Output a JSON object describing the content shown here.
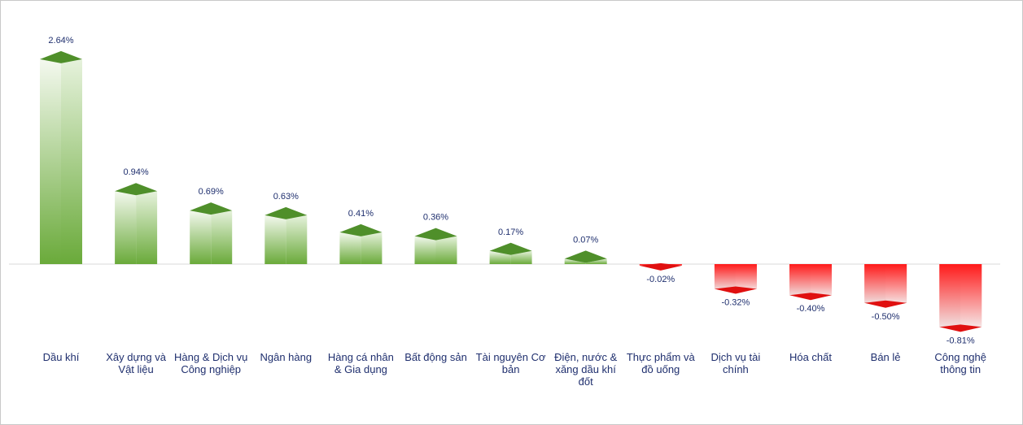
{
  "chart_data": {
    "type": "bar",
    "title": "",
    "xlabel": "",
    "ylabel": "",
    "grid": false,
    "legend": "none",
    "categories": [
      "Dầu khí",
      "Xây dựng và Vật liệu",
      "Hàng & Dịch vụ Công nghiệp",
      "Ngân hàng",
      "Hàng cá nhân & Gia dụng",
      "Bất động sản",
      "Tài nguyên Cơ bản",
      "Điện, nước & xăng dầu khí đốt",
      "Thực phẩm và đồ uống",
      "Dịch vụ tài chính",
      "Hóa chất",
      "Bán lẻ",
      "Công nghệ thông tin"
    ],
    "values": [
      2.64,
      0.94,
      0.69,
      0.63,
      0.41,
      0.36,
      0.17,
      0.07,
      -0.02,
      -0.32,
      -0.4,
      -0.5,
      -0.81
    ],
    "value_labels": [
      "2.64%",
      "0.94%",
      "0.69%",
      "0.63%",
      "0.41%",
      "0.36%",
      "0.17%",
      "0.07%",
      "-0.02%",
      "-0.32%",
      "-0.40%",
      "-0.50%",
      "-0.81%"
    ],
    "colors": {
      "positive": "#6aaa3a",
      "positive_light": "#f4f9ef",
      "positive_top": "#4f8f2a",
      "negative": "#ff1a1a",
      "negative_light": "#f0e8e8",
      "negative_bottom": "#e01010",
      "axis": "#d9d9d9",
      "label": "#1f2f6e"
    }
  }
}
